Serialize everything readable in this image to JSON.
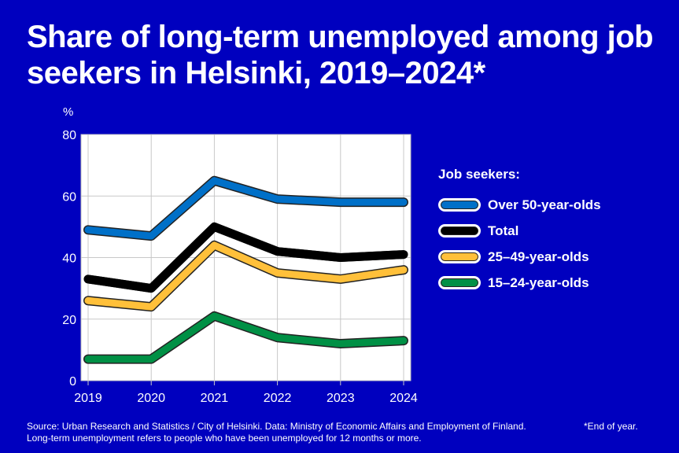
{
  "chart_data": {
    "type": "line",
    "title": "Share of long-term unemployed among job seekers in Helsinki, 2019–2024*",
    "ylabel": "%",
    "x": [
      "2019",
      "2020",
      "2021",
      "2022",
      "2023",
      "2024"
    ],
    "yticks": [
      "0",
      "20",
      "40",
      "60",
      "80"
    ],
    "ylim": [
      0,
      80
    ],
    "grid": true,
    "legend_title": "Job seekers:",
    "legend_position": "right",
    "series": [
      {
        "name": "Over 50-year-olds",
        "color": "#0070c8",
        "values": [
          49,
          47,
          65,
          59,
          58,
          58
        ]
      },
      {
        "name": "Total",
        "color": "#000000",
        "values": [
          33,
          30,
          50,
          42,
          40,
          41
        ]
      },
      {
        "name": "25–49-year-olds",
        "color": "#ffc03a",
        "values": [
          26,
          24,
          44,
          35,
          33,
          36
        ]
      },
      {
        "name": "15–24-year-olds",
        "color": "#009045",
        "values": [
          7,
          7,
          21,
          14,
          12,
          13
        ]
      }
    ]
  },
  "footer": {
    "source": "Source: Urban Research and Statistics / City of Helsinki. Data: Ministry of Economic Affairs and Employment of Finland.",
    "note": "Long-term unemployment refers to people who have been unemployed for 12 months or more.",
    "endnote": "*End of year."
  }
}
